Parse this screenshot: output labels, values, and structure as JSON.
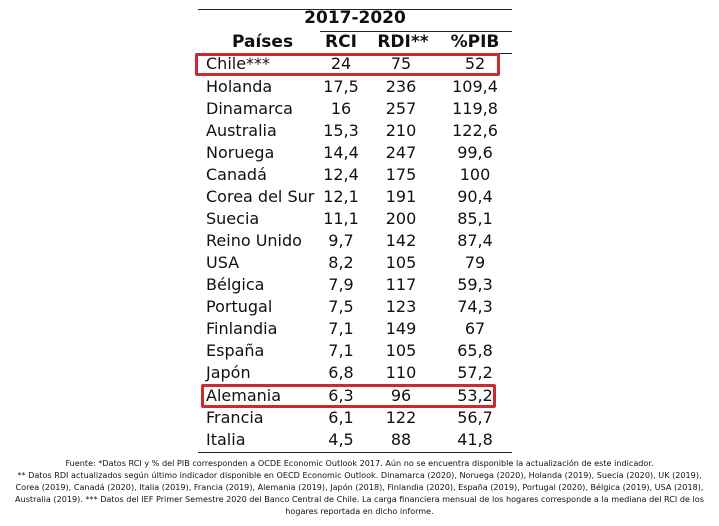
{
  "table": {
    "period_label": "2017-2020",
    "headers": {
      "country": "Países",
      "rci": "RCI",
      "rdi": "RDI**",
      "pib": "%PIB"
    },
    "rows": [
      {
        "country": "Chile***",
        "rci": "24",
        "rdi": "75",
        "pib": "52",
        "highlighted": true
      },
      {
        "country": "Holanda",
        "rci": "17,5",
        "rdi": "236",
        "pib": "109,4",
        "highlighted": false
      },
      {
        "country": "Dinamarca",
        "rci": "16",
        "rdi": "257",
        "pib": "119,8",
        "highlighted": false
      },
      {
        "country": "Australia",
        "rci": "15,3",
        "rdi": "210",
        "pib": "122,6",
        "highlighted": false
      },
      {
        "country": "Noruega",
        "rci": "14,4",
        "rdi": "247",
        "pib": "99,6",
        "highlighted": false
      },
      {
        "country": "Canadá",
        "rci": "12,4",
        "rdi": "175",
        "pib": "100",
        "highlighted": false
      },
      {
        "country": "Corea del Sur",
        "rci": "12,1",
        "rdi": "191",
        "pib": "90,4",
        "highlighted": false
      },
      {
        "country": "Suecia",
        "rci": "11,1",
        "rdi": "200",
        "pib": "85,1",
        "highlighted": false
      },
      {
        "country": "Reino Unido",
        "rci": "9,7",
        "rdi": "142",
        "pib": "87,4",
        "highlighted": false
      },
      {
        "country": "USA",
        "rci": "8,2",
        "rdi": "105",
        "pib": "79",
        "highlighted": false
      },
      {
        "country": "Bélgica",
        "rci": "7,9",
        "rdi": "117",
        "pib": "59,3",
        "highlighted": false
      },
      {
        "country": "Portugal",
        "rci": "7,5",
        "rdi": "123",
        "pib": "74,3",
        "highlighted": false
      },
      {
        "country": "Finlandia",
        "rci": "7,1",
        "rdi": "149",
        "pib": "67",
        "highlighted": false
      },
      {
        "country": "España",
        "rci": "7,1",
        "rdi": "105",
        "pib": "65,8",
        "highlighted": false
      },
      {
        "country": "Japón",
        "rci": "6,8",
        "rdi": "110",
        "pib": "57,2",
        "highlighted": false
      },
      {
        "country": "Alemania",
        "rci": "6,3",
        "rdi": "96",
        "pib": "53,2",
        "highlighted": true
      },
      {
        "country": "Francia",
        "rci": "6,1",
        "rdi": "122",
        "pib": "56,7",
        "highlighted": false
      },
      {
        "country": "Italia",
        "rci": "4,5",
        "rdi": "88",
        "pib": "41,8",
        "highlighted": false
      }
    ]
  },
  "source_note": {
    "line1": "Fuente: *Datos RCI y % del PIB corresponden a OCDE Economic Outlook 2017. Aún no se encuentra disponible la actualización de este indicador.",
    "line2": "** Datos RDI actualizados según último indicador disponible en OECD Economic Outlook. Dinamarca (2020), Noruega (2020), Holanda (2019), Suecia (2020), UK (2019),",
    "line3": "Corea (2019), Canadá (2020), Italia (2019), Francia (2019), Alemania (2019), Japón (2018), Finlandia (2020), España (2019), Portugal (2020), Bélgica (2019), USA (2018),",
    "line4": "Australia (2019). *** Datos del IEF Primer Semestre 2020 del Banco Central de Chile. La carga financiera mensual de los hogares corresponde a la mediana del RCI de los",
    "line5": "hogares reportada en dicho informe."
  },
  "highlight_color": "#cc2a2f"
}
